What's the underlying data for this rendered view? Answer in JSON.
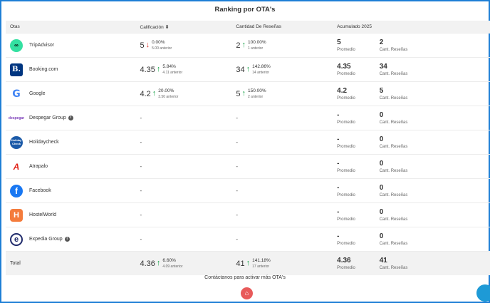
{
  "title": "Ranking por OTA's",
  "headers": {
    "otas": "Otas",
    "calificacion": "Calificación",
    "sort_icon": "⬍",
    "resenas": "Cantidad De Reseñas",
    "acumulado": "Acumulado 2025"
  },
  "rows": [
    {
      "name": "TripAdvisor",
      "logo_char": "∞",
      "rating": "5",
      "rating_dir": "down",
      "rating_pct": "0.00%",
      "rating_prev": "5.00 anterior",
      "reviews": "2",
      "reviews_dir": "up",
      "reviews_pct": "100.00%",
      "reviews_prev": "1 anterior",
      "prom": "5",
      "cant": "2"
    },
    {
      "name": "Booking.com",
      "logo_char": "B.",
      "rating": "4.35",
      "rating_dir": "up",
      "rating_pct": "5.84%",
      "rating_prev": "4.11 anterior",
      "reviews": "34",
      "reviews_dir": "up",
      "reviews_pct": "142.86%",
      "reviews_prev": "14 anterior",
      "prom": "4.35",
      "cant": "34"
    },
    {
      "name": "Google",
      "logo_char": "G",
      "rating": "4.2",
      "rating_dir": "up",
      "rating_pct": "20.00%",
      "rating_prev": "3.50 anterior",
      "reviews": "5",
      "reviews_dir": "up",
      "reviews_pct": "150.00%",
      "reviews_prev": "2 anterior",
      "prom": "4.2",
      "cant": "5"
    },
    {
      "name": "Despegar Group",
      "logo_char": "despegar",
      "info": true,
      "rating": "-",
      "reviews": "-",
      "prom": "-",
      "cant": "0"
    },
    {
      "name": "Holidaycheck",
      "logo_char": "Holiday Check",
      "rating": "-",
      "reviews": "-",
      "prom": "-",
      "cant": "0"
    },
    {
      "name": "Atrapalo",
      "logo_char": "A",
      "rating": "-",
      "reviews": "-",
      "prom": "-",
      "cant": "0"
    },
    {
      "name": "Facebook",
      "logo_char": "f",
      "rating": "-",
      "reviews": "-",
      "prom": "-",
      "cant": "0"
    },
    {
      "name": "HostelWorld",
      "logo_char": "H",
      "rating": "-",
      "reviews": "-",
      "prom": "-",
      "cant": "0"
    },
    {
      "name": "Expedia Group",
      "logo_char": "e",
      "info": true,
      "rating": "-",
      "reviews": "-",
      "prom": "-",
      "cant": "0"
    }
  ],
  "total": {
    "label": "Total",
    "rating": "4.36",
    "rating_pct": "6.60%",
    "rating_prev": "4.09 anterior",
    "reviews": "41",
    "reviews_pct": "141.18%",
    "reviews_prev": "17 anterior",
    "prom": "4.36",
    "cant": "41"
  },
  "labels": {
    "promedio": "Promedio",
    "cant": "Cant. Reseñas",
    "arrow_up": "↑",
    "arrow_down": "↓",
    "info": "i"
  },
  "footer": {
    "text": "Contáctanos para activar más OTA's",
    "fab_icon": "⌂"
  },
  "colors": {
    "accent": "#1e7fd6",
    "up": "#1aa34a",
    "down": "#d9342b",
    "fab": "#e85a5a"
  }
}
